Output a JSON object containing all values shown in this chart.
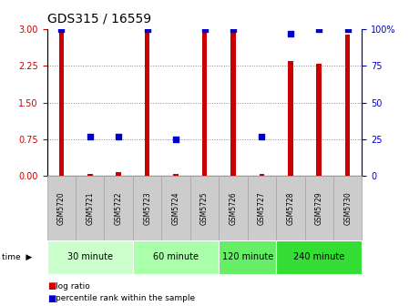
{
  "title": "GDS315 / 16559",
  "samples": [
    "GSM5720",
    "GSM5721",
    "GSM5722",
    "GSM5723",
    "GSM5724",
    "GSM5725",
    "GSM5726",
    "GSM5727",
    "GSM5728",
    "GSM5729",
    "GSM5730"
  ],
  "log_ratio": [
    3.0,
    0.05,
    0.07,
    2.95,
    0.04,
    2.92,
    2.93,
    0.04,
    2.35,
    2.3,
    2.88
  ],
  "percentile_rank": [
    100,
    27,
    27,
    100,
    25,
    100,
    100,
    27,
    97,
    100,
    100
  ],
  "ylim_left": [
    0,
    3
  ],
  "ylim_right": [
    0,
    100
  ],
  "yticks_left": [
    0,
    0.75,
    1.5,
    2.25,
    3
  ],
  "yticks_right": [
    0,
    25,
    50,
    75,
    100
  ],
  "groups": [
    {
      "label": "30 minute",
      "start": 0,
      "end": 3,
      "color": "#ccffcc"
    },
    {
      "label": "60 minute",
      "start": 3,
      "end": 6,
      "color": "#aaffaa"
    },
    {
      "label": "120 minute",
      "start": 6,
      "end": 8,
      "color": "#66ee66"
    },
    {
      "label": "240 minute",
      "start": 8,
      "end": 11,
      "color": "#33dd33"
    }
  ],
  "bar_color": "#cc0000",
  "dot_color": "#0000cc",
  "left_axis_color": "#cc0000",
  "right_axis_color": "#0000cc",
  "grid_color": "#888888",
  "bar_width": 0.18,
  "cell_gray": "#cccccc",
  "cell_edge": "#aaaaaa"
}
